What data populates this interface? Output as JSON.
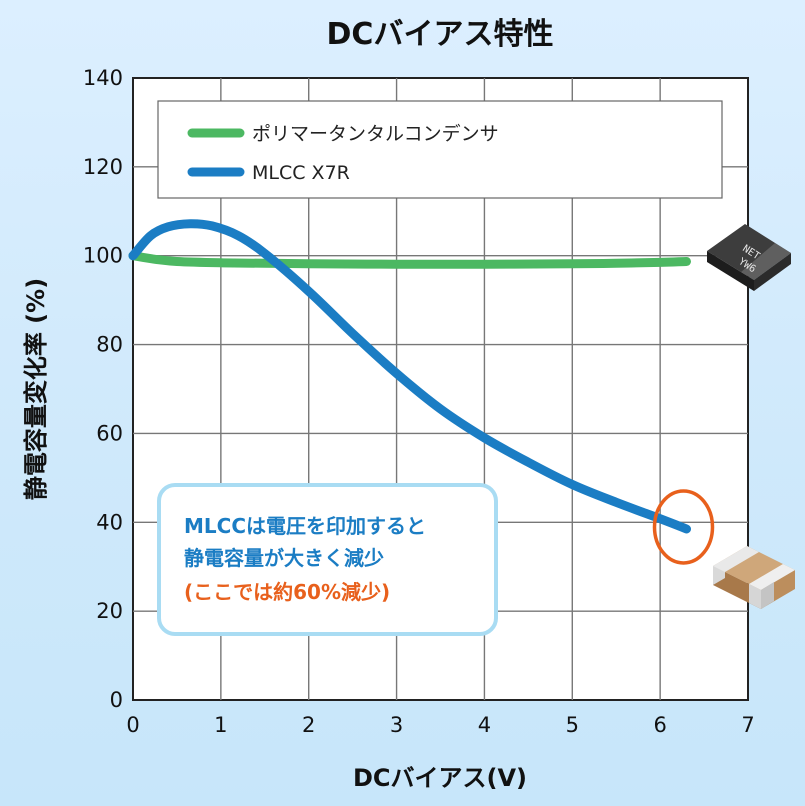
{
  "chart_data": {
    "type": "line",
    "title": "DCバイアス特性",
    "xlabel": "DCバイアス(V)",
    "ylabel": "静電容量変化率 (%)",
    "xlim": [
      0,
      7
    ],
    "ylim": [
      0,
      140
    ],
    "x_ticks": [
      "0",
      "1",
      "2",
      "3",
      "4",
      "5",
      "6",
      "7"
    ],
    "y_ticks": [
      "0",
      "20",
      "40",
      "60",
      "80",
      "100",
      "120",
      "140"
    ],
    "grid": true,
    "legend_position": "top-left",
    "series": [
      {
        "name": "ポリマータンタルコンデンサ",
        "color": "#4cb862",
        "x": [
          0,
          0.25,
          0.5,
          1,
          1.5,
          2,
          3,
          4,
          5,
          5.5,
          6,
          6.3
        ],
        "y": [
          100,
          99.2,
          98.7,
          98.4,
          98.3,
          98.2,
          98.1,
          98.1,
          98.2,
          98.3,
          98.5,
          98.7
        ]
      },
      {
        "name": "MLCC X7R",
        "color": "#1b7dc4",
        "x": [
          0,
          0.2,
          0.4,
          0.65,
          0.9,
          1.2,
          1.5,
          2,
          2.5,
          3,
          3.5,
          4,
          4.5,
          5,
          5.5,
          6,
          6.3
        ],
        "y": [
          100,
          104.5,
          106.5,
          107.2,
          106.7,
          104.5,
          100.5,
          92,
          82.5,
          73.5,
          65.5,
          59,
          53.5,
          48.5,
          44.5,
          40.8,
          38.5
        ]
      }
    ],
    "annotation": {
      "line1": "MLCCは電圧を印加すると",
      "line2": "静電容量が大きく減少",
      "line3": "(ここでは約60%減少)"
    },
    "highlight_point": {
      "x": 6.3,
      "y": 38.5,
      "color": "#e8601c"
    }
  },
  "icons": {
    "tantalum_chip": "tantalum-capacitor-chip-icon",
    "tantalum_marking_1": "NET",
    "tantalum_marking_2": "YW6",
    "mlcc_chip": "mlcc-chip-icon"
  },
  "colors": {
    "note_blue": "#1b7dc4",
    "note_orange": "#e8601c",
    "note_border": "#a9dcf3"
  }
}
